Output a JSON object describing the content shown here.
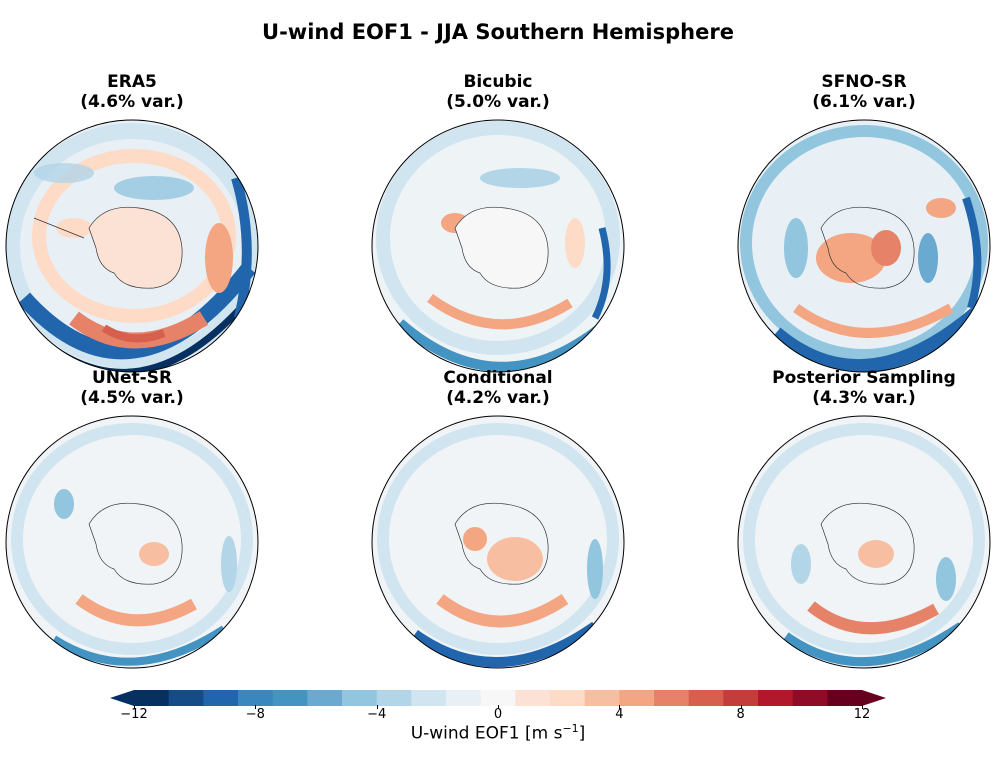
{
  "title": "U-wind EOF1 - JJA Southern Hemisphere",
  "panels": [
    {
      "name": "ERA5",
      "variance": "(4.6% var.)"
    },
    {
      "name": "Bicubic",
      "variance": "(5.0% var.)"
    },
    {
      "name": "SFNO-SR",
      "variance": "(6.1% var.)"
    },
    {
      "name": "UNet-SR",
      "variance": "(4.5% var.)"
    },
    {
      "name": "Conditional",
      "variance": "(4.2% var.)"
    },
    {
      "name": "Posterior Sampling",
      "variance": "(4.3% var.)"
    }
  ],
  "colorbar": {
    "label_prefix": "U-wind EOF1 [m s",
    "label_exp": "−1",
    "label_suffix": "]",
    "min": -12,
    "max": 12,
    "ticks": [
      "−12",
      "−8",
      "−4",
      "0",
      "4",
      "8",
      "12"
    ],
    "colors": [
      "#053061",
      "#134c87",
      "#2166ac",
      "#3a87bf",
      "#4393c3",
      "#6aa9d0",
      "#92c5de",
      "#b2d5e8",
      "#d1e5f0",
      "#e8f0f5",
      "#f7f7f7",
      "#fbe2d5",
      "#fddbc7",
      "#f8bea2",
      "#f4a582",
      "#e58267",
      "#d6604d",
      "#c33e3b",
      "#b2182b",
      "#8e0c25",
      "#67001f"
    ]
  }
}
